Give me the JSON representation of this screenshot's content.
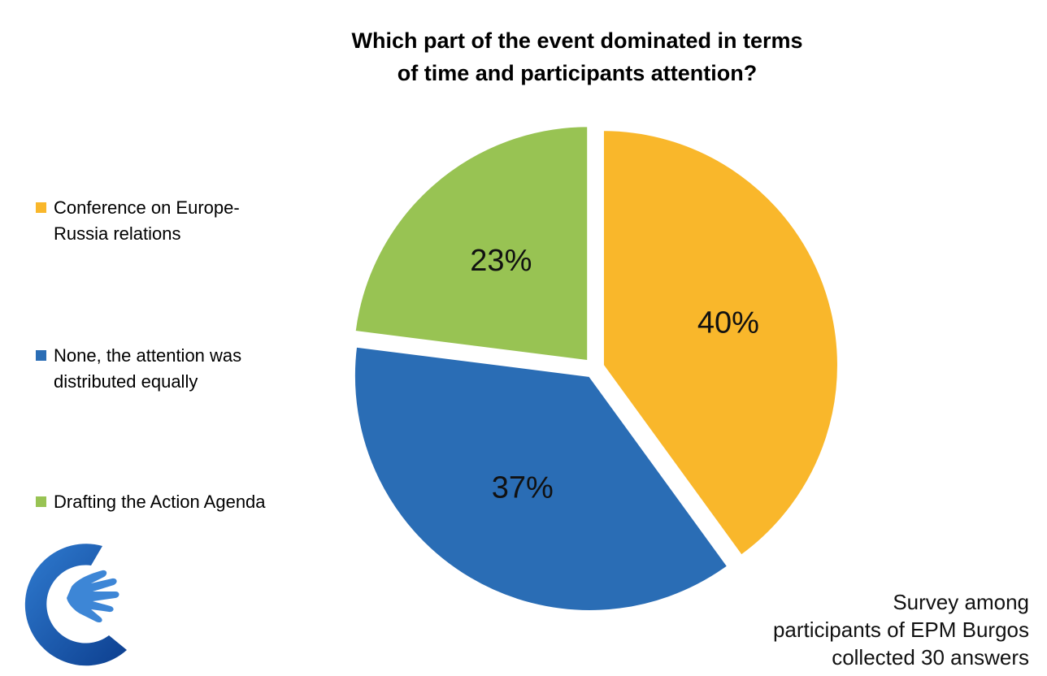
{
  "title": [
    "Which part of the event dominated in terms",
    "of time and participants attention?"
  ],
  "chart_data": {
    "type": "pie",
    "title": "Which part of the event dominated in terms of time and participants attention?",
    "slices": [
      {
        "label": "Conference on Europe-Russia relations",
        "value": 40,
        "display": "40%",
        "color": "#F9B72B"
      },
      {
        "label": "None, the attention was distributed equally",
        "value": 37,
        "display": "37%",
        "color": "#2A6DB5"
      },
      {
        "label": "Drafting the Action Agenda",
        "value": 23,
        "display": "23%",
        "color": "#98C353"
      }
    ],
    "legend_position": "left",
    "exploded": true
  },
  "legend": [
    {
      "lines": [
        "Conference on Europe-",
        "Russia relations"
      ],
      "color": "#F9B72B"
    },
    {
      "lines": [
        "None, the attention was",
        "distributed equally"
      ],
      "color": "#2A6DB5"
    },
    {
      "lines": [
        "Drafting the Action Agenda"
      ],
      "color": "#98C353"
    }
  ],
  "note": [
    "Survey among",
    "participants of EPM Burgos",
    "collected 30 answers"
  ],
  "logo": {
    "icon": "hand-c-logo",
    "colors": [
      "#1E5EB0",
      "#4A90D9"
    ]
  }
}
